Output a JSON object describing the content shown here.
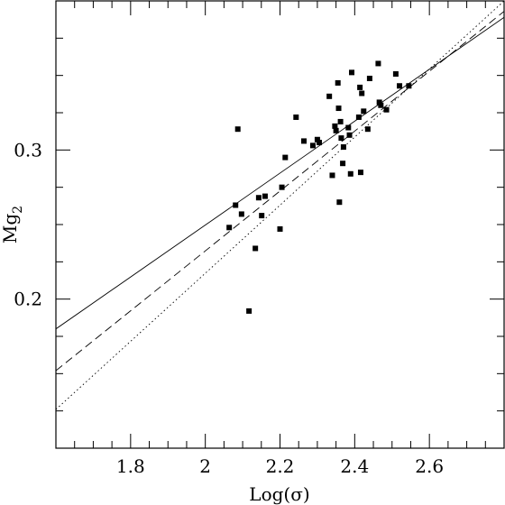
{
  "chart_data": {
    "type": "scatter",
    "xlabel": "Log(σ)",
    "ylabel_main": "Mg",
    "ylabel_sub": "2",
    "xlim": [
      1.6,
      2.8
    ],
    "ylim": [
      0.1,
      0.4
    ],
    "x_ticks": [
      1.8,
      2.0,
      2.2,
      2.4,
      2.6
    ],
    "x_tick_labels": [
      "1.8",
      "2",
      "2.2",
      "2.4",
      "2.6"
    ],
    "x_minor_step": 0.05,
    "y_ticks": [
      0.2,
      0.3
    ],
    "y_tick_labels": [
      "0.2",
      "0.3"
    ],
    "y_minor_step": 0.025,
    "grid": false,
    "lines": [
      {
        "style": "solid",
        "x": [
          1.6,
          2.8
        ],
        "y": [
          0.18,
          0.389
        ]
      },
      {
        "style": "dashed",
        "x": [
          1.6,
          2.8
        ],
        "y": [
          0.152,
          0.393
        ]
      },
      {
        "style": "dotted",
        "x": [
          1.6,
          2.8
        ],
        "y": [
          0.126,
          0.4
        ]
      }
    ],
    "points": [
      {
        "x": 2.087,
        "y": 0.314
      },
      {
        "x": 2.064,
        "y": 0.248
      },
      {
        "x": 2.081,
        "y": 0.263
      },
      {
        "x": 2.097,
        "y": 0.257
      },
      {
        "x": 2.117,
        "y": 0.192
      },
      {
        "x": 2.134,
        "y": 0.234
      },
      {
        "x": 2.143,
        "y": 0.268
      },
      {
        "x": 2.151,
        "y": 0.256
      },
      {
        "x": 2.16,
        "y": 0.269
      },
      {
        "x": 2.2,
        "y": 0.247
      },
      {
        "x": 2.205,
        "y": 0.275
      },
      {
        "x": 2.214,
        "y": 0.295
      },
      {
        "x": 2.243,
        "y": 0.322
      },
      {
        "x": 2.264,
        "y": 0.306
      },
      {
        "x": 2.288,
        "y": 0.303
      },
      {
        "x": 2.3,
        "y": 0.307
      },
      {
        "x": 2.305,
        "y": 0.305
      },
      {
        "x": 2.332,
        "y": 0.336
      },
      {
        "x": 2.34,
        "y": 0.283
      },
      {
        "x": 2.347,
        "y": 0.316
      },
      {
        "x": 2.35,
        "y": 0.313
      },
      {
        "x": 2.355,
        "y": 0.345
      },
      {
        "x": 2.357,
        "y": 0.328
      },
      {
        "x": 2.359,
        "y": 0.265
      },
      {
        "x": 2.362,
        "y": 0.319
      },
      {
        "x": 2.364,
        "y": 0.308
      },
      {
        "x": 2.368,
        "y": 0.291
      },
      {
        "x": 2.37,
        "y": 0.302
      },
      {
        "x": 2.383,
        "y": 0.315
      },
      {
        "x": 2.386,
        "y": 0.31
      },
      {
        "x": 2.389,
        "y": 0.284
      },
      {
        "x": 2.392,
        "y": 0.352
      },
      {
        "x": 2.411,
        "y": 0.322
      },
      {
        "x": 2.414,
        "y": 0.342
      },
      {
        "x": 2.416,
        "y": 0.285
      },
      {
        "x": 2.419,
        "y": 0.338
      },
      {
        "x": 2.424,
        "y": 0.326
      },
      {
        "x": 2.435,
        "y": 0.314
      },
      {
        "x": 2.44,
        "y": 0.348
      },
      {
        "x": 2.463,
        "y": 0.358
      },
      {
        "x": 2.466,
        "y": 0.332
      },
      {
        "x": 2.47,
        "y": 0.33
      },
      {
        "x": 2.485,
        "y": 0.327
      },
      {
        "x": 2.51,
        "y": 0.351
      },
      {
        "x": 2.52,
        "y": 0.343
      },
      {
        "x": 2.545,
        "y": 0.343
      }
    ]
  }
}
